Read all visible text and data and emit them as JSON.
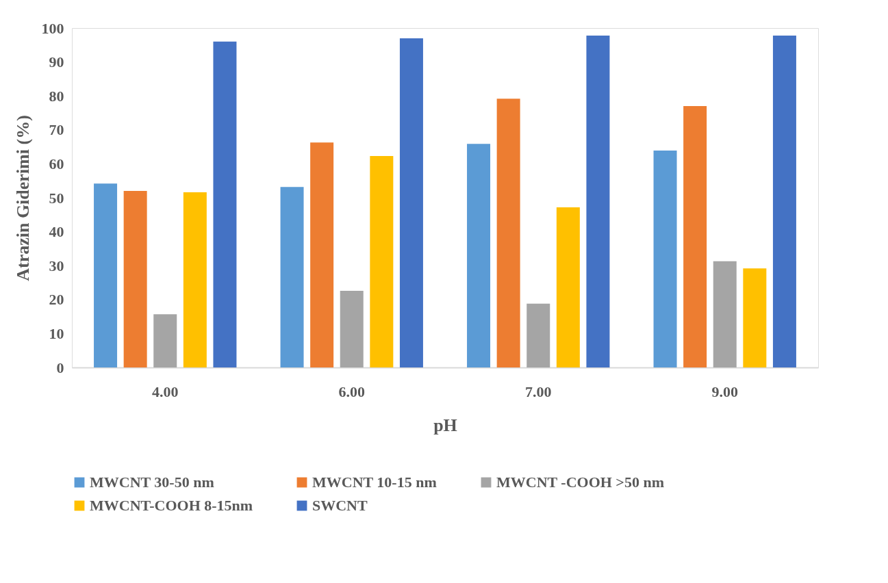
{
  "chart_data": {
    "type": "bar",
    "xlabel": "pH",
    "ylabel": "Atrazin Giderimi (%)",
    "categories": [
      "4.00",
      "6.00",
      "7.00",
      "9.00"
    ],
    "ylim": [
      0,
      100
    ],
    "yticks": [
      0,
      10,
      20,
      30,
      40,
      50,
      60,
      70,
      80,
      90,
      100
    ],
    "grid": false,
    "legend": "bottom",
    "series": [
      {
        "name": "MWCNT 30-50 nm",
        "color": "#5b9bd5",
        "values": [
          54.2,
          53.2,
          65.9,
          63.9
        ]
      },
      {
        "name": "MWCNT 10-15 nm",
        "color": "#ed7d31",
        "values": [
          52.0,
          66.3,
          79.2,
          77.0
        ]
      },
      {
        "name": "MWCNT -COOH >50 nm",
        "color": "#a5a5a5",
        "values": [
          15.7,
          22.6,
          18.8,
          31.3
        ]
      },
      {
        "name": "MWCNT-COOH 8-15nm",
        "color": "#ffc000",
        "values": [
          51.6,
          62.3,
          47.2,
          29.2
        ]
      },
      {
        "name": "SWCNT",
        "color": "#4472c4",
        "values": [
          96.0,
          97.0,
          97.8,
          97.8
        ]
      }
    ]
  }
}
